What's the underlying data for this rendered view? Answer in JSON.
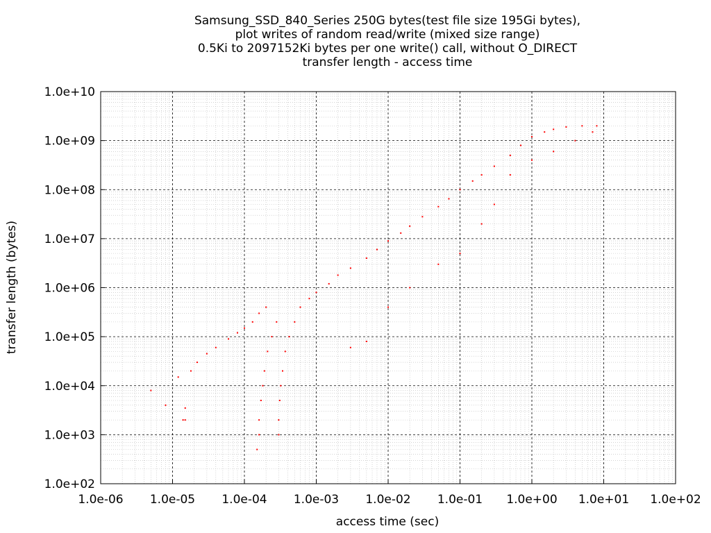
{
  "chart_data": {
    "type": "scatter",
    "title_lines": [
      "Samsung_SSD_840_Series 250G bytes(test file size 195Gi bytes),",
      "plot writes of random read/write (mixed size range)",
      "0.5Ki to 2097152Ki bytes per one write() call, without O_DIRECT",
      "transfer length - access time"
    ],
    "xlabel": "access time (sec)",
    "ylabel": "transfer length (bytes)",
    "x_scale": "log",
    "y_scale": "log",
    "xlim": [
      1e-06,
      100
    ],
    "ylim": [
      100,
      10000000000.0
    ],
    "x_ticks": [
      "1.0e-06",
      "1.0e-05",
      "1.0e-04",
      "1.0e-03",
      "1.0e-02",
      "1.0e-01",
      "1.0e+00",
      "1.0e+01",
      "1.0e+02"
    ],
    "y_ticks": [
      "1.0e+02",
      "1.0e+03",
      "1.0e+04",
      "1.0e+05",
      "1.0e+06",
      "1.0e+07",
      "1.0e+08",
      "1.0e+09",
      "1.0e+10"
    ],
    "grid": true,
    "marker_color": "#ff0000",
    "series": [
      {
        "points": [
          [
            5e-06,
            8000
          ],
          [
            8e-06,
            4000
          ],
          [
            1.2e-05,
            15000
          ],
          [
            1.4e-05,
            2000
          ],
          [
            1.5e-05,
            2000
          ],
          [
            1.5e-05,
            3500
          ],
          [
            1.8e-05,
            20000
          ],
          [
            2.2e-05,
            30000
          ],
          [
            3e-05,
            45000
          ],
          [
            4e-05,
            60000
          ],
          [
            6e-05,
            90000
          ],
          [
            8e-05,
            120000
          ],
          [
            0.0001,
            150000
          ],
          [
            0.00013,
            200000
          ],
          [
            0.00016,
            300000
          ],
          [
            0.0002,
            400000
          ],
          [
            0.00015,
            500
          ],
          [
            0.00016,
            1000
          ],
          [
            0.00016,
            2000
          ],
          [
            0.00017,
            5000
          ],
          [
            0.00018,
            10000
          ],
          [
            0.00019,
            20000
          ],
          [
            0.00021,
            50000
          ],
          [
            0.00024,
            100000
          ],
          [
            0.00028,
            200000
          ],
          [
            0.0003,
            1000
          ],
          [
            0.0003,
            2000
          ],
          [
            0.00031,
            5000
          ],
          [
            0.00032,
            10000
          ],
          [
            0.00034,
            20000
          ],
          [
            0.00037,
            50000
          ],
          [
            0.00042,
            100000
          ],
          [
            0.0005,
            200000
          ],
          [
            0.0006,
            400000
          ],
          [
            0.0008,
            600000
          ],
          [
            0.001,
            800000
          ],
          [
            0.0015,
            1200000
          ],
          [
            0.002,
            1800000
          ],
          [
            0.003,
            2500000
          ],
          [
            0.005,
            4000000
          ],
          [
            0.007,
            6000000
          ],
          [
            0.01,
            9000000
          ],
          [
            0.015,
            13000000
          ],
          [
            0.02,
            18000000
          ],
          [
            0.03,
            28000000
          ],
          [
            0.05,
            45000000
          ],
          [
            0.07,
            65000000
          ],
          [
            0.1,
            100000000
          ],
          [
            0.15,
            150000000
          ],
          [
            0.2,
            200000000
          ],
          [
            0.3,
            300000000
          ],
          [
            0.5,
            500000000
          ],
          [
            0.7,
            800000000
          ],
          [
            1,
            1200000000
          ],
          [
            1.5,
            1500000000
          ],
          [
            2,
            1700000000
          ],
          [
            3,
            1900000000
          ],
          [
            5,
            2000000000
          ],
          [
            8,
            2000000000
          ],
          [
            0.5,
            200000000
          ],
          [
            1,
            400000000
          ],
          [
            2,
            600000000
          ],
          [
            4,
            1000000000
          ],
          [
            7,
            1500000000
          ],
          [
            0.3,
            50000000
          ],
          [
            0.2,
            20000000
          ],
          [
            0.1,
            5000000
          ],
          [
            0.05,
            3000000
          ],
          [
            0.02,
            1000000
          ],
          [
            0.01,
            400000
          ],
          [
            0.005,
            80000
          ],
          [
            0.003,
            60000
          ]
        ]
      }
    ]
  }
}
